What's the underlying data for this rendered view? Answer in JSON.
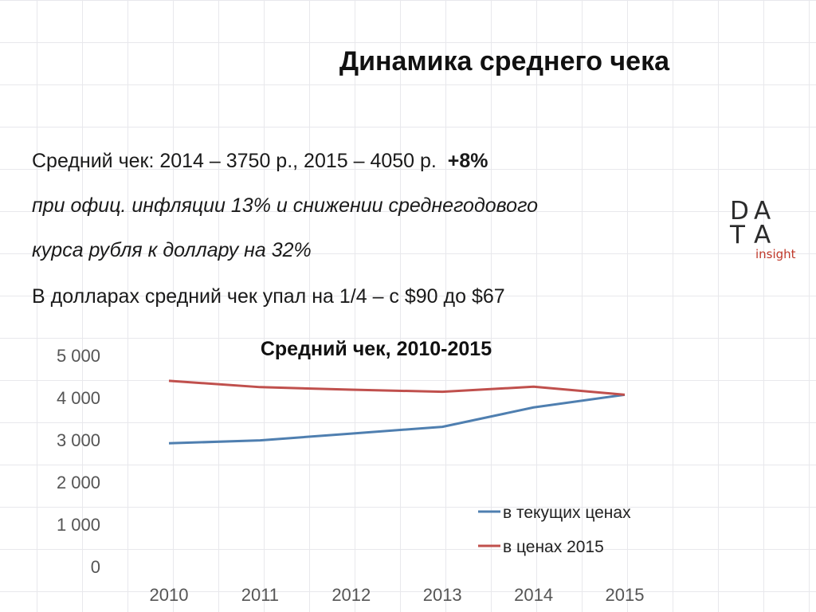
{
  "slide": {
    "title": "Динамика среднего чека",
    "line1_main": "Средний чек: 2014 – 3750 р., 2015 – 4050 р.",
    "line1_bold": "+8%",
    "line2": "при офиц. инфляции 13% и снижении среднегодового",
    "line3": "курса рубля к доллару на  32%",
    "line4": "В долларах средний чек упал на 1/4 – с $90 до $67"
  },
  "logo": {
    "letters": [
      "D",
      "A",
      "T",
      "A"
    ],
    "subtitle": "insight",
    "text_color": "#2b2b2b",
    "accent_color": "#c0392b"
  },
  "chart_data": {
    "type": "line",
    "title": "Средний чек, 2010-2015",
    "x": [
      "2010",
      "2011",
      "2012",
      "2013",
      "2014",
      "2015"
    ],
    "ylim": [
      0,
      5000
    ],
    "yticks": [
      0,
      1000,
      2000,
      3000,
      4000,
      5000
    ],
    "ytick_labels": [
      "0",
      "1 000",
      "2 000",
      "3 000",
      "4 000",
      "5 000"
    ],
    "legend_position": "bottom-right",
    "series": [
      {
        "name": "в текущих ценах",
        "color": "#4f7fb0",
        "values": [
          2900,
          2970,
          3130,
          3290,
          3750,
          4050
        ]
      },
      {
        "name": "в ценах 2015",
        "color": "#c0504d",
        "values": [
          4380,
          4230,
          4170,
          4120,
          4240,
          4050
        ]
      }
    ]
  }
}
